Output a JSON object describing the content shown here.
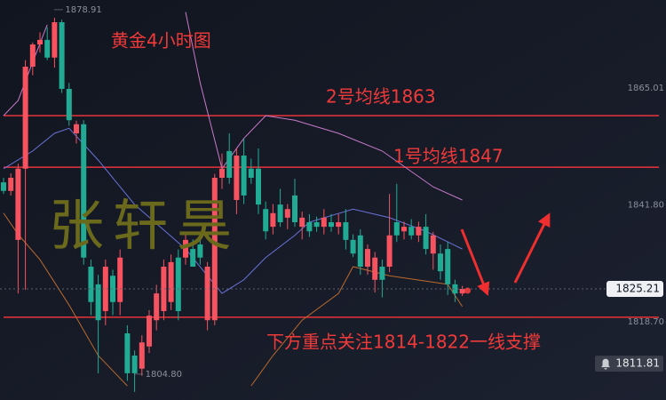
{
  "chart_data": {
    "type": "candlestick",
    "title": "黄金4小时图",
    "watermark": "张轩昊",
    "annotations": [
      "2号均线1863",
      "1号均线1847",
      "下方重点关注1814-1822一线支撑"
    ],
    "ylim": [
      1803.2,
      1882.4
    ],
    "yticks": [
      1865.01,
      {
        "value": 1841.8,
        "label": "1841.80"
      },
      {
        "value": 1818.7,
        "label": "1818.70"
      }
    ],
    "grid": false,
    "up_color": "#f7525f",
    "down_color": "#22ab94",
    "open": [
      1846.3,
      1844.6,
      1834.9,
      1849.0,
      1869.2,
      1873.6,
      1874.5,
      1871.0,
      1878.0,
      1864.8,
      1856.0,
      1857.8,
      1829.6,
      1826.1,
      1820.8,
      1827.8,
      1822.6,
      1816.4,
      1812.0,
      1809.4,
      1813.8,
      1819.0,
      1820.8,
      1822.6,
      1831.4,
      1831.4,
      1833.1,
      1834.0,
      1819.0,
      1819.0,
      1847.2,
      1852.5,
      1842.8,
      1851.6,
      1849.0,
      1849.0,
      1841.0,
      1837.5,
      1841.9,
      1839.3,
      1843.7,
      1837.5,
      1838.4,
      1838.4,
      1837.5,
      1838.4,
      1837.5,
      1838.4,
      1834.9,
      1835.8,
      1829.6,
      1827.0,
      1829.6,
      1829.6,
      1838.4,
      1836.6,
      1837.5,
      1835.8,
      1837.5,
      1832.2,
      1832.2,
      1833.1,
      1826.1,
      1824.3
    ],
    "high": [
      1847.2,
      1848.1,
      1850.0,
      1870.5,
      1874.0,
      1876.0,
      1877.0,
      1878.91,
      1878.5,
      1866.0,
      1858.5,
      1858.6,
      1831.0,
      1828.0,
      1831.0,
      1829.0,
      1833.0,
      1818.0,
      1813.0,
      1816.0,
      1821.0,
      1826.0,
      1831.0,
      1832.0,
      1833.0,
      1836.0,
      1835.0,
      1835.5,
      1830.5,
      1848.0,
      1852.0,
      1856.0,
      1853.0,
      1855.0,
      1851.0,
      1853.0,
      1842.5,
      1842.0,
      1845.0,
      1842.0,
      1847.0,
      1840.5,
      1840.0,
      1839.5,
      1841.0,
      1840.0,
      1840.0,
      1841.0,
      1836.0,
      1837.0,
      1834.0,
      1832.5,
      1831.0,
      1844.0,
      1846.0,
      1838.5,
      1839.0,
      1838.5,
      1840.0,
      1836.5,
      1834.0,
      1834.5,
      1827.0,
      1825.8
    ],
    "low": [
      1844.0,
      1843.7,
      1824.3,
      1825.0,
      1867.5,
      1872.0,
      1870.5,
      1869.0,
      1864.0,
      1857.5,
      1854.0,
      1830.0,
      1820.0,
      1808.5,
      1818.0,
      1820.0,
      1820.0,
      1807.0,
      1804.8,
      1808.0,
      1812.5,
      1817.0,
      1819.0,
      1821.0,
      1819.0,
      1830.0,
      1829.6,
      1830.0,
      1817.0,
      1818.0,
      1845.0,
      1846.0,
      1840.0,
      1842.0,
      1846.0,
      1840.0,
      1835.0,
      1836.0,
      1837.5,
      1837.0,
      1837.5,
      1835.0,
      1835.5,
      1836.5,
      1836.0,
      1836.5,
      1836.0,
      1833.0,
      1831.5,
      1828.0,
      1828.0,
      1824.5,
      1823.5,
      1828.5,
      1834.5,
      1835.0,
      1835.0,
      1834.5,
      1832.0,
      1829.0,
      1827.0,
      1824.0,
      1822.6,
      1823.8
    ],
    "close": [
      1844.6,
      1847.2,
      1849.0,
      1869.2,
      1873.6,
      1874.5,
      1871.0,
      1878.0,
      1864.8,
      1858.6,
      1857.8,
      1831.4,
      1822.6,
      1819.0,
      1829.6,
      1822.6,
      1831.4,
      1808.5,
      1808.5,
      1814.6,
      1819.9,
      1824.3,
      1829.6,
      1830.5,
      1820.8,
      1834.9,
      1829.6,
      1831.4,
      1829.6,
      1847.2,
      1849.0,
      1847.2,
      1851.6,
      1843.7,
      1847.2,
      1841.9,
      1836.6,
      1840.2,
      1838.4,
      1841.0,
      1838.4,
      1839.3,
      1836.6,
      1837.5,
      1839.3,
      1837.5,
      1838.4,
      1834.9,
      1832.2,
      1829.6,
      1833.1,
      1831.4,
      1827.0,
      1835.8,
      1835.8,
      1837.5,
      1835.8,
      1837.5,
      1833.1,
      1835.8,
      1828.7,
      1826.1,
      1824.3,
      1825.21
    ],
    "series": [
      {
        "color": "#6a72d8",
        "x": [
          0,
          4,
          7,
          9,
          13,
          18,
          25,
          28,
          30,
          33,
          36,
          40,
          42,
          48,
          53,
          58,
          63
        ],
        "values": [
          1849.0,
          1852.5,
          1856.0,
          1857.0,
          1850.7,
          1841.9,
          1833.1,
          1827.8,
          1824.3,
          1827.0,
          1831.4,
          1835.8,
          1838.4,
          1841.0,
          1839.3,
          1836.6,
          1833.1
        ]
      },
      {
        "color": "#c77ac9",
        "x": [
          0,
          2,
          4,
          6,
          7,
          24,
          25,
          27,
          30,
          33,
          36,
          40,
          46,
          52,
          59,
          63
        ],
        "values": [
          1859.5,
          1862.5,
          1870.1,
          1877.5,
          null,
          null,
          1880.0,
          1866.0,
          1849.0,
          1855.0,
          1859.5,
          1858.6,
          1856.0,
          1852.5,
          1845.4,
          1842.8
        ]
      },
      {
        "color": "#b8692e",
        "x": [
          0,
          2,
          5,
          9,
          13,
          17,
          18,
          33,
          34,
          37,
          41,
          46,
          48,
          53,
          61,
          63
        ],
        "values": [
          1840.2,
          1836.0,
          1831.0,
          1822.0,
          1812.0,
          1806.0,
          null,
          null,
          1806.0,
          1812.0,
          1819.0,
          1824.3,
          1829.6,
          1827.8,
          1826.1,
          1821.7
        ]
      }
    ],
    "levels": [
      1859.5,
      1849.3,
      1819.6
    ],
    "level_color": "#e8333a",
    "last_price": 1825.21,
    "alert_price": 1811.81,
    "high_mark": 1878.91,
    "low_mark": {
      "value": 1804.8,
      "label": "1804.80"
    }
  }
}
